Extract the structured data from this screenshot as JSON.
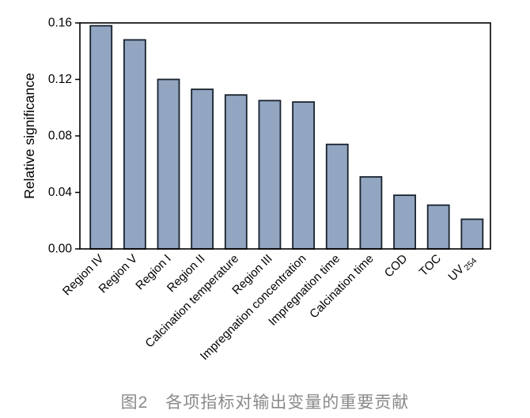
{
  "figure": {
    "caption": "图2　各项指标对输出变量的重要贡献"
  },
  "chart_data": {
    "type": "bar",
    "title": "",
    "xlabel": "",
    "ylabel": "Relative significance",
    "ylim": [
      0,
      0.16
    ],
    "yticks": [
      "0.00",
      "0.04",
      "0.08",
      "0.12",
      "0.16"
    ],
    "grid": false,
    "legend": "none",
    "x_label_rotation_deg": 45,
    "bar_fill_color": "#92a5c1",
    "bar_edge_color": "#18222e",
    "axis_color": "#000000",
    "tick_label_color": "#000000",
    "caption_color": "#8a8a8a",
    "categories": [
      {
        "text": "Region IV"
      },
      {
        "text": "Region V"
      },
      {
        "text": "Region I"
      },
      {
        "text": "Region II"
      },
      {
        "text": "Calcination temperature"
      },
      {
        "text": "Region III"
      },
      {
        "text": "Impregnation concentration"
      },
      {
        "text": "Impregnation time"
      },
      {
        "text": "Calcination time"
      },
      {
        "text": "COD"
      },
      {
        "text": "TOC"
      },
      {
        "text": "UV",
        "sub": "254"
      }
    ],
    "values": [
      0.158,
      0.148,
      0.12,
      0.113,
      0.109,
      0.105,
      0.104,
      0.074,
      0.051,
      0.038,
      0.031,
      0.021
    ]
  }
}
